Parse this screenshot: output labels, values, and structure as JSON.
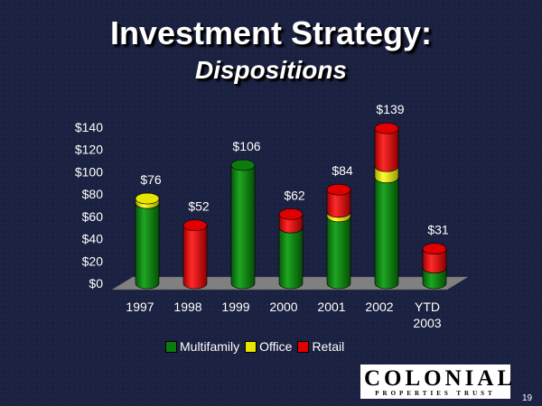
{
  "slide": {
    "title_line1": "Investment Strategy:",
    "title_line2": "Dispositions",
    "page_number": "19"
  },
  "logo": {
    "word": "COLONIAL",
    "subtitle": "PROPERTIES TRUST"
  },
  "colors": {
    "multifamily": "#0d7a10",
    "office": "#e6e600",
    "retail": "#e00000",
    "floor": "#7f7f7f"
  },
  "chart_data": {
    "type": "bar",
    "stacked": true,
    "categories": [
      "1997",
      "1998",
      "1999",
      "2000",
      "2001",
      "2002",
      "YTD 2003"
    ],
    "series": [
      {
        "name": "Multifamily",
        "values": [
          72,
          0,
          106,
          50,
          60,
          95,
          14
        ]
      },
      {
        "name": "Office",
        "values": [
          4,
          0,
          0,
          0,
          4,
          10,
          0
        ]
      },
      {
        "name": "Retail",
        "values": [
          0,
          52,
          0,
          12,
          20,
          34,
          17
        ]
      }
    ],
    "totals": [
      76,
      52,
      106,
      62,
      84,
      139,
      31
    ],
    "total_labels": [
      "$76",
      "$52",
      "$106",
      "$62",
      "$84",
      "$139",
      "$31"
    ],
    "y_ticks": [
      0,
      20,
      40,
      60,
      80,
      100,
      120,
      140
    ],
    "y_tick_labels": [
      "$0",
      "$20",
      "$40",
      "$60",
      "$80",
      "$100",
      "$120",
      "$140"
    ],
    "ylim": [
      0,
      140
    ],
    "legend_position": "bottom",
    "grid": false
  }
}
